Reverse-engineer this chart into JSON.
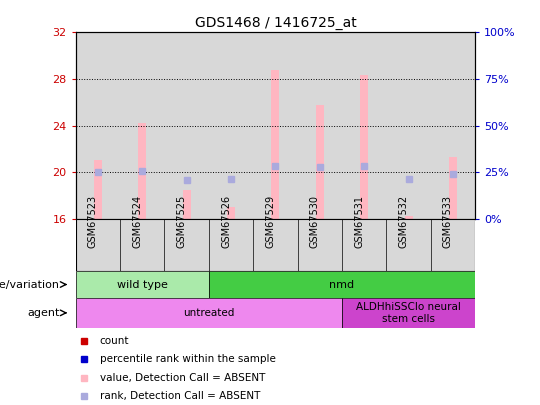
{
  "title": "GDS1468 / 1416725_at",
  "samples": [
    "GSM67523",
    "GSM67524",
    "GSM67525",
    "GSM67526",
    "GSM67529",
    "GSM67530",
    "GSM67531",
    "GSM67532",
    "GSM67533"
  ],
  "bar_values": [
    21.0,
    24.2,
    18.5,
    17.0,
    28.8,
    25.8,
    28.3,
    16.2,
    21.3
  ],
  "rank_values": [
    20.0,
    20.1,
    19.3,
    19.4,
    20.5,
    20.4,
    20.5,
    19.4,
    19.8
  ],
  "bar_color_absent": "#FFB6C1",
  "rank_color_absent": "#AAAADD",
  "ylim_left": [
    16,
    32
  ],
  "ylim_right": [
    0,
    100
  ],
  "yticks_left": [
    16,
    20,
    24,
    28,
    32
  ],
  "yticks_right": [
    0,
    25,
    50,
    75,
    100
  ],
  "ytick_labels_right": [
    "0%",
    "25%",
    "50%",
    "75%",
    "100%"
  ],
  "left_tick_color": "#CC0000",
  "right_tick_color": "#0000CC",
  "genotype_groups": [
    {
      "label": "wild type",
      "start": 0,
      "end": 3,
      "color": "#AAEAAA"
    },
    {
      "label": "nmd",
      "start": 3,
      "end": 9,
      "color": "#44CC44"
    }
  ],
  "agent_groups": [
    {
      "label": "untreated",
      "start": 0,
      "end": 6,
      "color": "#EE88EE"
    },
    {
      "label": "ALDHhiSSClo neural\nstem cells",
      "start": 6,
      "end": 9,
      "color": "#CC44CC"
    }
  ],
  "legend_items": [
    {
      "label": "count",
      "color": "#CC0000",
      "marker": "s"
    },
    {
      "label": "percentile rank within the sample",
      "color": "#0000CC",
      "marker": "s"
    },
    {
      "label": "value, Detection Call = ABSENT",
      "color": "#FFB6C1",
      "marker": "s"
    },
    {
      "label": "rank, Detection Call = ABSENT",
      "color": "#AAAADD",
      "marker": "s"
    }
  ],
  "genotype_label": "genotype/variation",
  "agent_label": "agent",
  "bar_width": 0.5,
  "col_bg_even": "#DDDDDD",
  "col_bg_odd": "#DDDDDD"
}
